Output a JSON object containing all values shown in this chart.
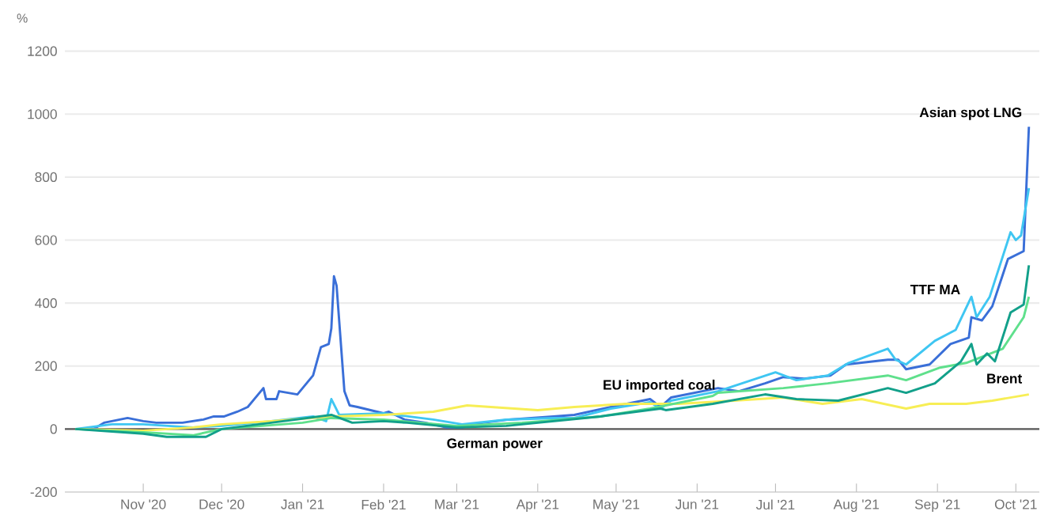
{
  "chart_data": {
    "type": "line",
    "ylabel": "%",
    "grid": "y",
    "marker": "none",
    "line_style": "solid",
    "xlim": [
      "2020-10-02",
      "2021-10-10"
    ],
    "ylim": [
      -200,
      1200
    ],
    "yticks": [
      -200,
      0,
      200,
      400,
      600,
      800,
      1000,
      1200
    ],
    "xticks": [
      {
        "value": "2020-11-01",
        "label": "Nov '20"
      },
      {
        "value": "2020-12-01",
        "label": "Dec '20"
      },
      {
        "value": "2021-01-01",
        "label": "Jan '21"
      },
      {
        "value": "2021-02-01",
        "label": "Feb '21"
      },
      {
        "value": "2021-03-01",
        "label": "Mar '21"
      },
      {
        "value": "2021-04-01",
        "label": "Apr '21"
      },
      {
        "value": "2021-05-01",
        "label": "May '21"
      },
      {
        "value": "2021-06-01",
        "label": "Jun '21"
      },
      {
        "value": "2021-07-01",
        "label": "Jul '21"
      },
      {
        "value": "2021-08-01",
        "label": "Aug '21"
      },
      {
        "value": "2021-09-01",
        "label": "Sep '21"
      },
      {
        "value": "2021-10-01",
        "label": "Oct '21"
      }
    ],
    "series": [
      {
        "name": "Asian spot LNG",
        "color": "#3a6fd8",
        "x": [
          "2020-10-06",
          "2020-10-13",
          "2020-10-17",
          "2020-10-26",
          "2020-11-01",
          "2020-11-06",
          "2020-11-16",
          "2020-11-24",
          "2020-11-28",
          "2020-12-02",
          "2020-12-07",
          "2020-12-11",
          "2020-12-17",
          "2020-12-18",
          "2020-12-22",
          "2020-12-23",
          "2020-12-30",
          "2021-01-05",
          "2021-01-08",
          "2021-01-11",
          "2021-01-12",
          "2021-01-13",
          "2021-01-14",
          "2021-01-17",
          "2021-01-19",
          "2021-01-22",
          "2021-02-01",
          "2021-02-03",
          "2021-02-09",
          "2021-02-17",
          "2021-02-25",
          "2021-03-03",
          "2021-03-11",
          "2021-03-21",
          "2021-04-07",
          "2021-04-15",
          "2021-04-29",
          "2021-05-14",
          "2021-05-18",
          "2021-05-22",
          "2021-06-09",
          "2021-06-17",
          "2021-06-27",
          "2021-07-04",
          "2021-07-12",
          "2021-07-22",
          "2021-07-28",
          "2021-08-13",
          "2021-08-17",
          "2021-08-20",
          "2021-08-29",
          "2021-09-06",
          "2021-09-13",
          "2021-09-14",
          "2021-09-18",
          "2021-09-22",
          "2021-09-28",
          "2021-10-04",
          "2021-10-06"
        ],
        "values": [
          0,
          0,
          20,
          35,
          25,
          20,
          20,
          30,
          40,
          40,
          55,
          70,
          130,
          95,
          95,
          120,
          110,
          170,
          260,
          270,
          320,
          485,
          455,
          120,
          75,
          70,
          50,
          55,
          30,
          20,
          5,
          5,
          20,
          30,
          40,
          45,
          70,
          95,
          70,
          100,
          130,
          120,
          145,
          165,
          160,
          170,
          205,
          220,
          220,
          190,
          205,
          270,
          290,
          355,
          345,
          390,
          540,
          565,
          960
        ]
      },
      {
        "name": "TTF MA",
        "color": "#3fc6f2",
        "x": [
          "2020-10-06",
          "2020-10-20",
          "2020-11-01",
          "2020-11-20",
          "2020-12-01",
          "2020-12-20",
          "2021-01-05",
          "2021-01-10",
          "2021-01-12",
          "2021-01-15",
          "2021-02-01",
          "2021-02-20",
          "2021-03-03",
          "2021-03-20",
          "2021-04-07",
          "2021-04-15",
          "2021-04-29",
          "2021-05-14",
          "2021-05-18",
          "2021-05-22",
          "2021-06-09",
          "2021-07-01",
          "2021-07-09",
          "2021-07-21",
          "2021-07-29",
          "2021-08-13",
          "2021-08-16",
          "2021-08-20",
          "2021-08-31",
          "2021-09-08",
          "2021-09-14",
          "2021-09-16",
          "2021-09-21",
          "2021-09-29",
          "2021-10-01",
          "2021-10-03",
          "2021-10-06"
        ],
        "values": [
          0,
          15,
          15,
          5,
          10,
          25,
          40,
          25,
          95,
          45,
          50,
          30,
          15,
          30,
          35,
          35,
          65,
          85,
          65,
          90,
          120,
          180,
          155,
          170,
          210,
          255,
          220,
          205,
          280,
          315,
          420,
          355,
          420,
          625,
          600,
          615,
          765
        ]
      },
      {
        "name": "Brent",
        "color": "#f7ee55",
        "x": [
          "2020-10-06",
          "2020-11-01",
          "2020-11-20",
          "2020-12-01",
          "2020-12-20",
          "2021-01-12",
          "2021-02-01",
          "2021-02-20",
          "2021-03-05",
          "2021-04-01",
          "2021-04-15",
          "2021-05-05",
          "2021-05-25",
          "2021-06-15",
          "2021-07-04",
          "2021-07-19",
          "2021-08-03",
          "2021-08-20",
          "2021-08-29",
          "2021-09-12",
          "2021-09-22",
          "2021-10-06"
        ],
        "values": [
          0,
          -5,
          5,
          15,
          25,
          40,
          45,
          55,
          75,
          60,
          70,
          80,
          80,
          90,
          100,
          80,
          95,
          65,
          80,
          80,
          90,
          110
        ]
      },
      {
        "name": "EU imported coal",
        "color": "#5fe08c",
        "x": [
          "2020-10-06",
          "2020-11-01",
          "2020-11-20",
          "2020-12-01",
          "2021-01-01",
          "2021-01-12",
          "2021-02-01",
          "2021-03-01",
          "2021-03-26",
          "2021-04-25",
          "2021-05-14",
          "2021-06-07",
          "2021-06-09",
          "2021-07-04",
          "2021-07-21",
          "2021-08-13",
          "2021-08-20",
          "2021-09-02",
          "2021-09-12",
          "2021-09-26",
          "2021-10-04",
          "2021-10-06"
        ],
        "values": [
          0,
          -10,
          -20,
          0,
          20,
          35,
          30,
          10,
          20,
          40,
          65,
          105,
          115,
          130,
          145,
          170,
          155,
          195,
          210,
          255,
          355,
          420
        ]
      },
      {
        "name": "German power",
        "color": "#12a08a",
        "x": [
          "2020-10-06",
          "2020-11-01",
          "2020-11-10",
          "2020-11-25",
          "2020-12-01",
          "2020-12-20",
          "2021-01-12",
          "2021-01-20",
          "2021-02-01",
          "2021-02-10",
          "2021-03-01",
          "2021-03-20",
          "2021-03-26",
          "2021-04-25",
          "2021-05-18",
          "2021-05-20",
          "2021-06-07",
          "2021-06-27",
          "2021-07-09",
          "2021-07-25",
          "2021-08-13",
          "2021-08-20",
          "2021-08-31",
          "2021-09-10",
          "2021-09-14",
          "2021-09-16",
          "2021-09-20",
          "2021-09-23",
          "2021-09-29",
          "2021-10-04",
          "2021-10-06"
        ],
        "values": [
          0,
          -15,
          -25,
          -25,
          0,
          20,
          45,
          20,
          25,
          20,
          5,
          10,
          15,
          40,
          65,
          60,
          80,
          110,
          95,
          90,
          130,
          115,
          145,
          215,
          270,
          205,
          240,
          215,
          370,
          395,
          520
        ]
      }
    ]
  }
}
